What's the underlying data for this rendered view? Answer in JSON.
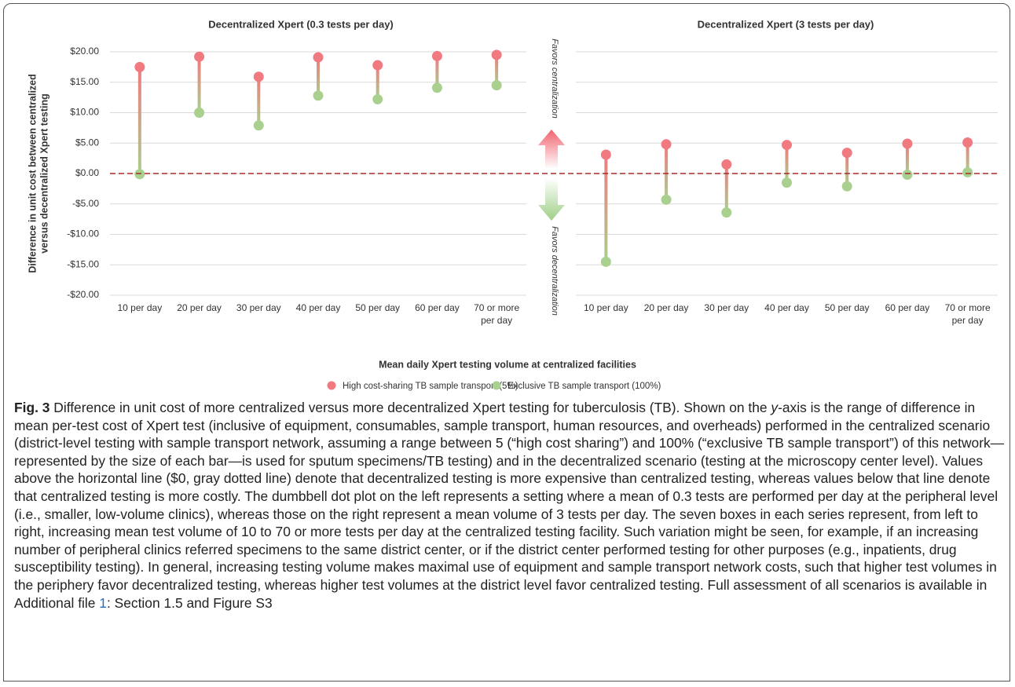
{
  "figure": {
    "ylabel": [
      "Difference in unit cost between centralized",
      "versus decentralized Xpert testing"
    ],
    "xlabel": "Mean daily Xpert testing volume at centralized facilities",
    "arrow_up": "Favors centralization",
    "arrow_down": "Favors decentralization"
  },
  "chart_data": [
    {
      "type": "dumbbell",
      "title": "Decentralized Xpert (0.3 tests per day)",
      "categories": [
        "10 per day",
        "20 per day",
        "30 per day",
        "40 per day",
        "50 per day",
        "60 per day",
        "70 or more per day"
      ],
      "series": [
        {
          "name": "High cost-sharing TB sample transport (5%)",
          "color": "#f07a80",
          "values": [
            17.5,
            19.2,
            15.9,
            19.1,
            17.8,
            19.3,
            19.5
          ]
        },
        {
          "name": "Exclusive TB sample transport (100%)",
          "color": "#a9d08e",
          "values": [
            -0.1,
            10.0,
            7.9,
            12.8,
            12.2,
            14.1,
            14.5
          ]
        }
      ],
      "ylim": [
        -20,
        20
      ],
      "yticks": [
        {
          "value": 20,
          "label": "$20.00"
        },
        {
          "value": 15,
          "label": "$15.00"
        },
        {
          "value": 10,
          "label": "$10.00"
        },
        {
          "value": 5,
          "label": "$5.00"
        },
        {
          "value": 0,
          "label": "$0.00"
        },
        {
          "value": -5,
          "label": "-$5.00"
        },
        {
          "value": -10,
          "label": "-$10.00"
        },
        {
          "value": -15,
          "label": "-$15.00"
        },
        {
          "value": -20,
          "label": "-$20.00"
        }
      ],
      "grid": true
    },
    {
      "type": "dumbbell",
      "title": "Decentralized Xpert (3 tests per day)",
      "categories": [
        "10 per day",
        "20 per day",
        "30 per day",
        "40 per day",
        "50 per day",
        "60 per day",
        "70 or more per day"
      ],
      "series": [
        {
          "color": "#f07a80",
          "values": [
            3.1,
            4.8,
            1.5,
            4.7,
            3.4,
            4.9,
            5.1
          ]
        },
        {
          "color": "#a9d08e",
          "values": [
            -14.5,
            -4.3,
            -6.4,
            -1.5,
            -2.1,
            -0.2,
            0.2
          ]
        }
      ],
      "grid": true
    }
  ],
  "caption": {
    "label": "Fig. 3",
    "text1": "Difference in unit cost of more centralized versus more decentralized Xpert testing for tuberculosis (TB). Shown on the ",
    "italic": "y",
    "text2": "-axis is the range of difference in mean per-test cost of Xpert test (inclusive of equipment, consumables, sample transport, human resources, and overheads) performed in the centralized scenario (district-level testing with sample transport network, assuming a range between 5 (“high cost sharing”) and 100% (“exclusive TB sample transport”) of this network—represented by the size of each bar—is used for sputum specimens/TB testing) and in the decentralized scenario (testing at the microscopy center level). Values above the horizontal line ($0, gray dotted line) denote that decentralized testing is more expensive than centralized testing, whereas values below that line denote that centralized testing is more costly. The dumbbell dot plot on the left represents a setting where a mean of 0.3 tests are performed per day at the peripheral level (i.e., smaller, low-volume clinics), whereas those on the right represent a mean volume of 3 tests per day. The seven boxes in each series represent, from left to right, increasing mean test volume of 10 to 70 or more tests per day at the centralized testing facility. Such variation might be seen, for example, if an increasing number of peripheral clinics referred specimens to the same district center, or if the district center performed testing for other purposes (e.g., inpatients, drug susceptibility testing). In general, increasing testing volume makes maximal use of equipment and sample transport network costs, such that higher test volumes in the periphery favor decentralized testing, whereas higher test volumes at the district level favor centralized testing. Full assessment of all scenarios is available in Additional file ",
    "link": "1",
    "text3": ": Section 1.5 and Figure S3"
  }
}
